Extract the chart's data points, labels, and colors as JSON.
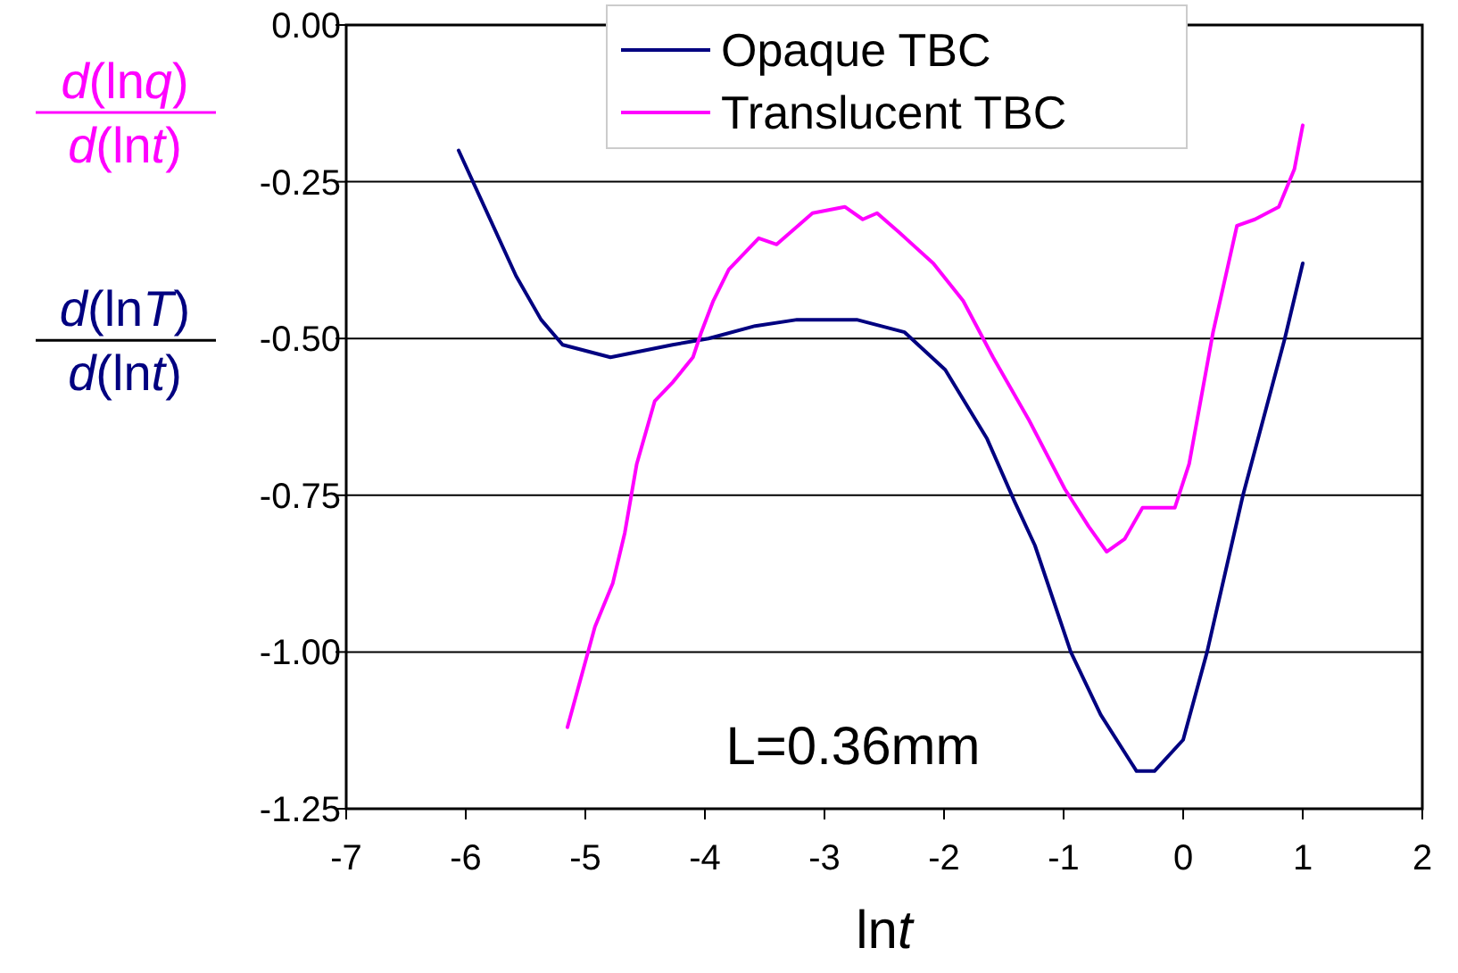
{
  "chart_data": {
    "type": "line",
    "xlabel": "lnt",
    "annotations": [
      "d(lnq)",
      "d(lnt)",
      "d(lnT)",
      "d(lnt)",
      "L=0.36mm"
    ],
    "xlim": [
      -7,
      2
    ],
    "xticks": [
      -7,
      -6,
      -5,
      -4,
      -3,
      -2,
      -1,
      0,
      1,
      2
    ],
    "ylim": [
      -1.25,
      0
    ],
    "yticks": [
      {
        "value": 0,
        "label": "0.00"
      },
      -0.25,
      {
        "value": -0.5,
        "label": "-0.50"
      },
      -0.75,
      {
        "value": -1,
        "label": "-1.00"
      },
      -1.25
    ],
    "grid": "y",
    "legend": "top",
    "line_style": "solid",
    "marker": "none",
    "series": [
      {
        "name": "Opaque TBC",
        "color": "#000080",
        "x": [
          -6.06,
          -5.58,
          -5.37,
          -5.19,
          -4.79,
          -4.27,
          -3.97,
          -3.58,
          -3.23,
          -2.73,
          -2.33,
          -1.99,
          -1.64,
          -1.41,
          -1.24,
          -0.94,
          -0.69,
          -0.39,
          -0.24,
          0.0,
          0.2,
          0.5,
          0.85,
          1.0
        ],
        "values": [
          -0.2,
          -0.4,
          -0.47,
          -0.51,
          -0.53,
          -0.51,
          -0.5,
          -0.48,
          -0.47,
          -0.47,
          -0.49,
          -0.55,
          -0.66,
          -0.76,
          -0.83,
          -1.0,
          -1.1,
          -1.19,
          -1.19,
          -1.14,
          -1.0,
          -0.75,
          -0.5,
          -0.38
        ]
      },
      {
        "name": "Translucent TBC",
        "color": "#ff00ff",
        "x": [
          -5.15,
          -4.92,
          -4.77,
          -4.67,
          -4.57,
          -4.42,
          -4.27,
          -4.1,
          -4.03,
          -3.93,
          -3.8,
          -3.55,
          -3.4,
          -3.28,
          -3.1,
          -2.83,
          -2.68,
          -2.56,
          -2.38,
          -2.09,
          -1.84,
          -1.59,
          -1.29,
          -0.99,
          -0.79,
          -0.64,
          -0.49,
          -0.34,
          -0.07,
          0.05,
          0.25,
          0.45,
          0.6,
          0.8,
          0.93,
          1.0
        ],
        "values": [
          -1.12,
          -0.96,
          -0.89,
          -0.81,
          -0.7,
          -0.6,
          -0.57,
          -0.53,
          -0.49,
          -0.44,
          -0.39,
          -0.34,
          -0.35,
          -0.33,
          -0.3,
          -0.29,
          -0.31,
          -0.3,
          -0.33,
          -0.38,
          -0.44,
          -0.53,
          -0.63,
          -0.74,
          -0.8,
          -0.84,
          -0.82,
          -0.77,
          -0.77,
          -0.7,
          -0.49,
          -0.32,
          -0.31,
          -0.29,
          -0.23,
          -0.16
        ]
      }
    ]
  }
}
